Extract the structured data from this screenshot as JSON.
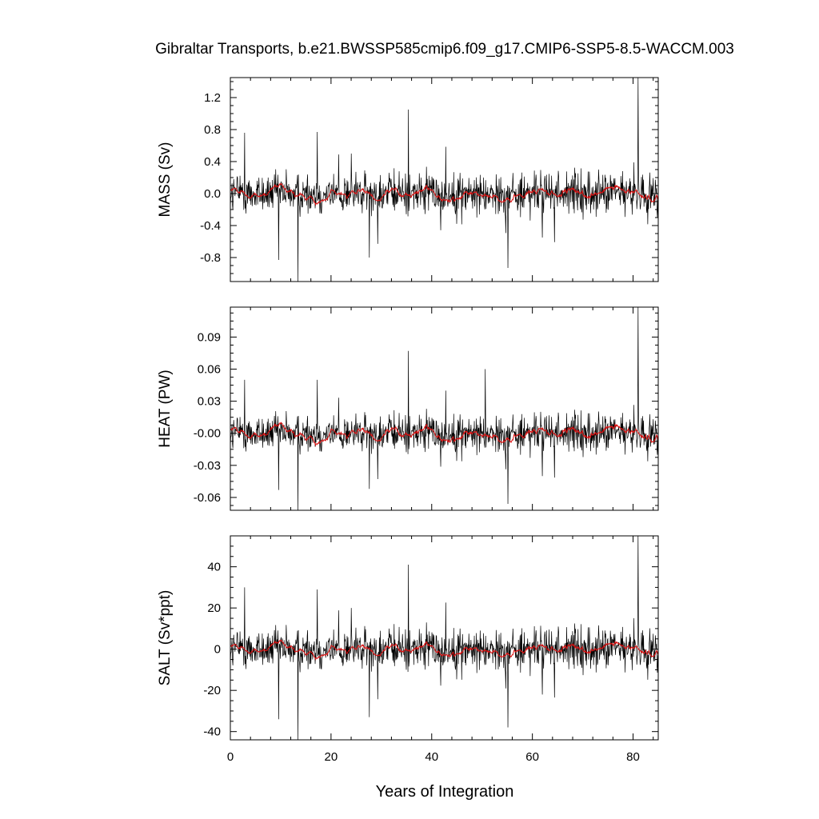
{
  "chart_data": {
    "type": "line",
    "title": "Gibraltar Transports, b.e21.BWSSP585cmip6.f09_g17.CMIP6-SSP5-8.5-WACCM.003",
    "xlabel": "Years of Integration",
    "xlim": [
      0,
      85
    ],
    "xticks": [
      0,
      20,
      40,
      60,
      80
    ],
    "xtick_labels": [
      "0",
      "20",
      "40",
      "60",
      "80"
    ],
    "grid": false,
    "panels": [
      {
        "ylabel": "MASS (Sv)",
        "ylim": [
          -1.1,
          1.45
        ],
        "yticks": [
          -0.8,
          -0.4,
          0.0,
          0.4,
          0.8,
          1.2
        ],
        "ytick_labels": [
          "-0.8",
          "-0.4",
          "0.0",
          "0.4",
          "0.8",
          "1.2"
        ],
        "noise_amplitude": 0.22,
        "smooth_amplitude": 0.1,
        "spikes": [
          {
            "x": 13.4,
            "y": -1.1
          },
          {
            "x": 9.6,
            "y": -0.83
          },
          {
            "x": 35.4,
            "y": 1.05
          },
          {
            "x": 81.0,
            "y": 1.45
          },
          {
            "x": 55.1,
            "y": -0.93
          },
          {
            "x": 2.8,
            "y": 0.76
          },
          {
            "x": 27.6,
            "y": -0.8
          },
          {
            "x": 17.3,
            "y": 0.77
          },
          {
            "x": 24.0,
            "y": 0.5
          },
          {
            "x": 62.0,
            "y": -0.55
          }
        ],
        "series": [
          {
            "name": "",
            "values_style": "monthly",
            "color": "#000000"
          },
          {
            "name": "",
            "values_style": "smoothed",
            "color": "#dd1111"
          }
        ]
      },
      {
        "ylabel": "HEAT (PW)",
        "ylim": [
          -0.072,
          0.118
        ],
        "yticks": [
          -0.06,
          -0.03,
          0.0,
          0.03,
          0.06,
          0.09
        ],
        "ytick_labels": [
          "-0.06",
          "-0.03",
          "-0.00",
          "0.03",
          "0.06",
          "0.09"
        ],
        "noise_amplitude": 0.015,
        "smooth_amplitude": 0.008,
        "spikes": [
          {
            "x": 13.4,
            "y": -0.072
          },
          {
            "x": 9.6,
            "y": -0.053
          },
          {
            "x": 35.4,
            "y": 0.077
          },
          {
            "x": 81.0,
            "y": 0.118
          },
          {
            "x": 55.1,
            "y": -0.066
          },
          {
            "x": 2.8,
            "y": 0.05
          },
          {
            "x": 27.6,
            "y": -0.052
          },
          {
            "x": 17.3,
            "y": 0.05
          },
          {
            "x": 50.6,
            "y": 0.06
          },
          {
            "x": 62.0,
            "y": -0.04
          }
        ],
        "series": [
          {
            "name": "",
            "values_style": "monthly",
            "color": "#000000"
          },
          {
            "name": "",
            "values_style": "smoothed",
            "color": "#dd1111"
          }
        ]
      },
      {
        "ylabel": "SALT (Sv*ppt)",
        "ylim": [
          -44,
          55
        ],
        "yticks": [
          -40,
          -20,
          0,
          20,
          40
        ],
        "ytick_labels": [
          "-40",
          "-20",
          "0",
          "20",
          "40"
        ],
        "noise_amplitude": 8.5,
        "smooth_amplitude": 3.5,
        "spikes": [
          {
            "x": 13.4,
            "y": -44
          },
          {
            "x": 9.6,
            "y": -34
          },
          {
            "x": 35.4,
            "y": 41
          },
          {
            "x": 81.0,
            "y": 55
          },
          {
            "x": 55.1,
            "y": -38
          },
          {
            "x": 2.8,
            "y": 30
          },
          {
            "x": 27.6,
            "y": -33
          },
          {
            "x": 17.3,
            "y": 29
          },
          {
            "x": 24.0,
            "y": 20
          },
          {
            "x": 62.0,
            "y": -22
          }
        ],
        "series": [
          {
            "name": "",
            "values_style": "monthly",
            "color": "#000000"
          },
          {
            "name": "",
            "values_style": "smoothed",
            "color": "#dd1111"
          }
        ]
      }
    ]
  }
}
